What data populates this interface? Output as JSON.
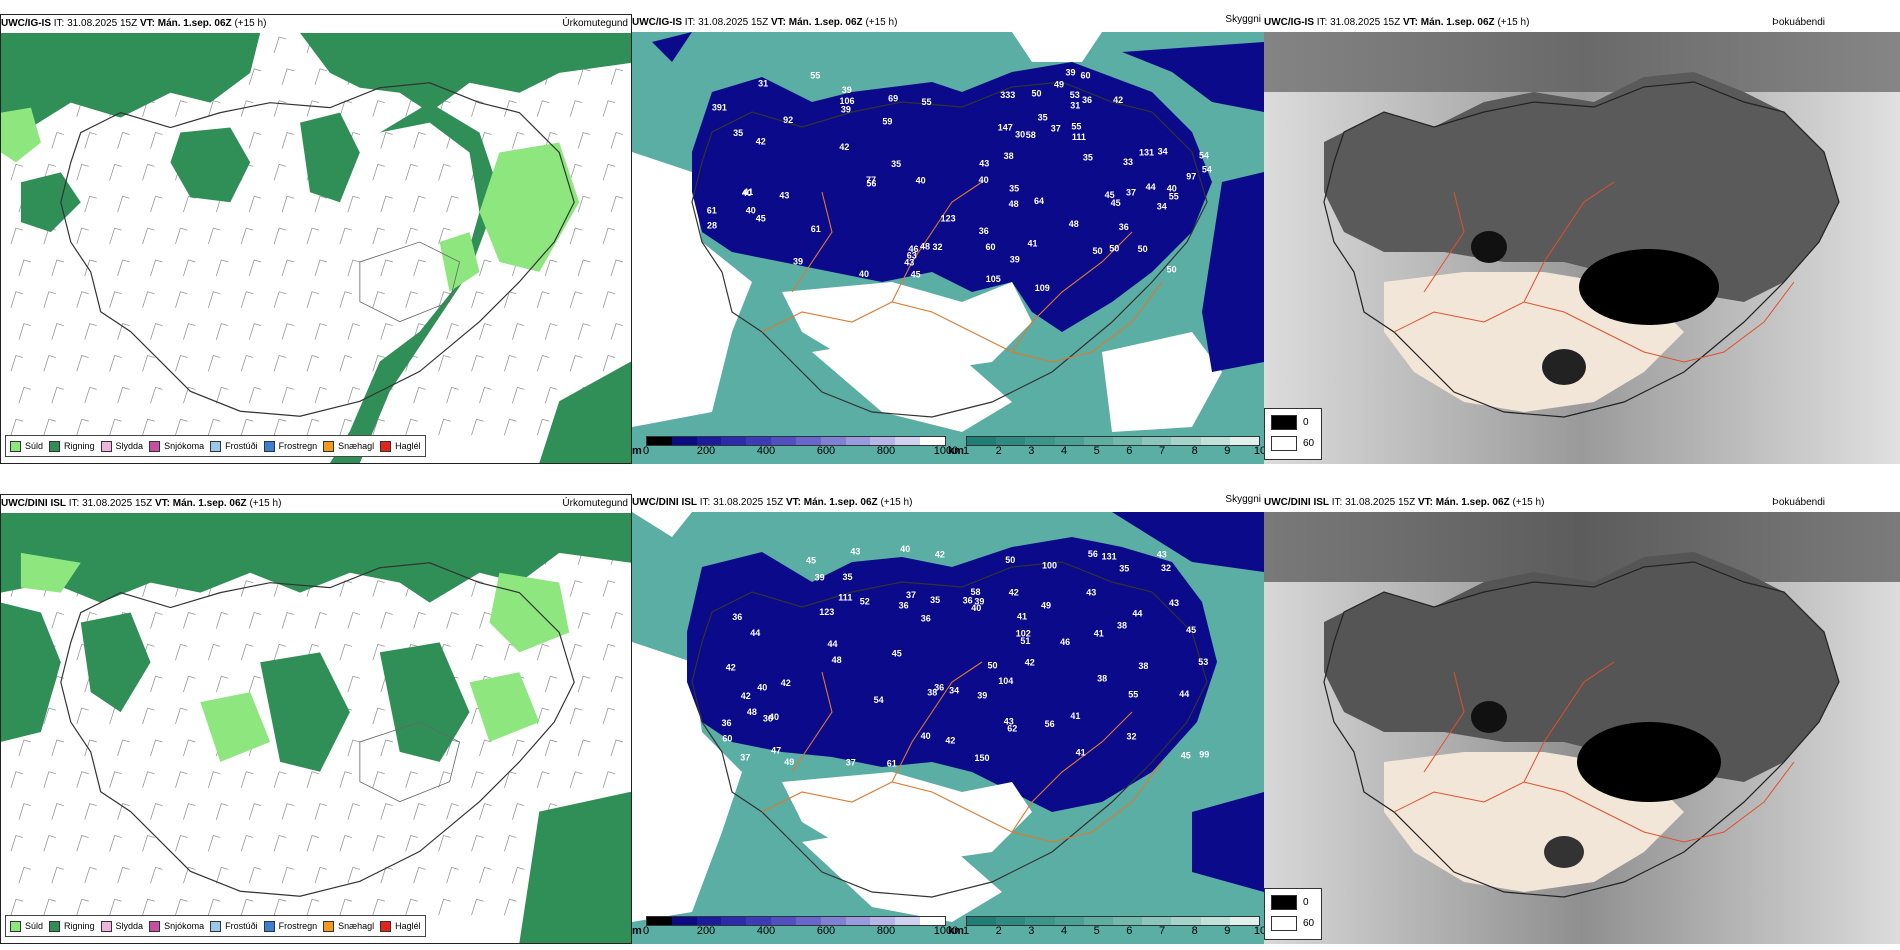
{
  "top_row": {
    "header": {
      "model": "UWC/IG-IS",
      "it_text": "IT: 31.08.2025 15Z",
      "vt_label": "VT:",
      "vt_value": "Mán. 1.sep. 06Z",
      "lead": "(+15 h)"
    },
    "precip_title": "Úrkomutegund",
    "vis_title": "Skyggni",
    "dew_title": "Þokuábendi",
    "cloud_numbers": [
      "55",
      "60",
      "45",
      "58",
      "55",
      "55",
      "53",
      "46",
      "42",
      "50",
      "42",
      "92",
      "61",
      "54",
      "40",
      "39",
      "39",
      "34",
      "56",
      "54",
      "48",
      "49",
      "123",
      "33",
      "31",
      "35",
      "32",
      "36",
      "41",
      "30",
      "42",
      "50",
      "35",
      "31",
      "35",
      "50",
      "45",
      "40",
      "48",
      "40",
      "39",
      "45",
      "43",
      "35",
      "40",
      "69",
      "61",
      "60",
      "64",
      "63",
      "40",
      "48",
      "34",
      "39",
      "40",
      "37",
      "37",
      "45",
      "36",
      "50",
      "55",
      "59",
      "36",
      "41",
      "38",
      "43",
      "44",
      "35",
      "43",
      "50",
      "39",
      "97",
      "109",
      "106",
      "77",
      "131",
      "147",
      "105",
      "111",
      "28",
      "391",
      "333"
    ]
  },
  "bottom_row": {
    "header": {
      "model": "UWC/DINI ISL",
      "it_text": "IT: 31.08.2025 15Z",
      "vt_label": "VT:",
      "vt_value": "Mán. 1.sep. 06Z",
      "lead": "(+15 h)"
    },
    "precip_title": "Úrkomutegund",
    "vis_title": "Skyggni",
    "dew_title": "Þokuábendi",
    "cloud_numbers": [
      "45",
      "44",
      "43",
      "58",
      "50",
      "49",
      "56",
      "46",
      "45",
      "42",
      "41",
      "47",
      "37",
      "42",
      "36",
      "37",
      "44",
      "38",
      "55",
      "52",
      "48",
      "44",
      "51",
      "35",
      "42",
      "36",
      "32",
      "36",
      "32",
      "43",
      "40",
      "39",
      "45",
      "43",
      "50",
      "49",
      "53",
      "40",
      "44",
      "36",
      "61",
      "39",
      "37",
      "41",
      "40",
      "36",
      "38",
      "36",
      "35",
      "40",
      "36",
      "42",
      "41",
      "150",
      "131",
      "39",
      "43",
      "38",
      "43",
      "42",
      "56",
      "41",
      "62",
      "42",
      "34",
      "42",
      "60",
      "54",
      "38",
      "99",
      "102",
      "104",
      "111",
      "100",
      "123",
      "45",
      "35",
      "48",
      "40"
    ]
  },
  "precip_legend": [
    {
      "label": "Súld",
      "color": "#8ee67f"
    },
    {
      "label": "Rigning",
      "color": "#2f8f57"
    },
    {
      "label": "Slydda",
      "color": "#f0b3d9"
    },
    {
      "label": "Snjókoma",
      "color": "#c64fa3"
    },
    {
      "label": "Frostúði",
      "color": "#9cc8f0"
    },
    {
      "label": "Frostregn",
      "color": "#3c7fd0"
    },
    {
      "label": "Snæhagl",
      "color": "#f39a1e"
    },
    {
      "label": "Haglél",
      "color": "#e1251b"
    }
  ],
  "cloud_scale": {
    "unit": "m",
    "labels": [
      "0",
      "200",
      "400",
      "600",
      "800",
      "1000"
    ],
    "colors": [
      "#000000",
      "#0b0b85",
      "#1b1b9e",
      "#2b2bae",
      "#3c3cb8",
      "#5050c2",
      "#6666cc",
      "#8080d4",
      "#9a9ade",
      "#b5b5e8",
      "#d0d0f0",
      "#ffffff"
    ]
  },
  "vis_scale": {
    "unit": "km",
    "labels": [
      "1",
      "2",
      "3",
      "4",
      "5",
      "6",
      "7",
      "8",
      "9",
      "10"
    ],
    "colors": [
      "#1f7f77",
      "#2c8a80",
      "#3a958a",
      "#4aa095",
      "#5dada1",
      "#72b9ad",
      "#8ac6bb",
      "#a4d3c9",
      "#c0e1d9",
      "#e0f0ec"
    ]
  },
  "dew_legend": [
    {
      "label": "0",
      "color": "#000000"
    },
    {
      "label": "60",
      "color": "#ffffff"
    }
  ],
  "colors": {
    "drizzle": "#8ee67f",
    "rain": "#2f8f57",
    "cloud_low": "#0a0a8a",
    "vis_teal": "#5aaea3",
    "roads": "#e07830",
    "lowland": "#f2e6d8"
  }
}
